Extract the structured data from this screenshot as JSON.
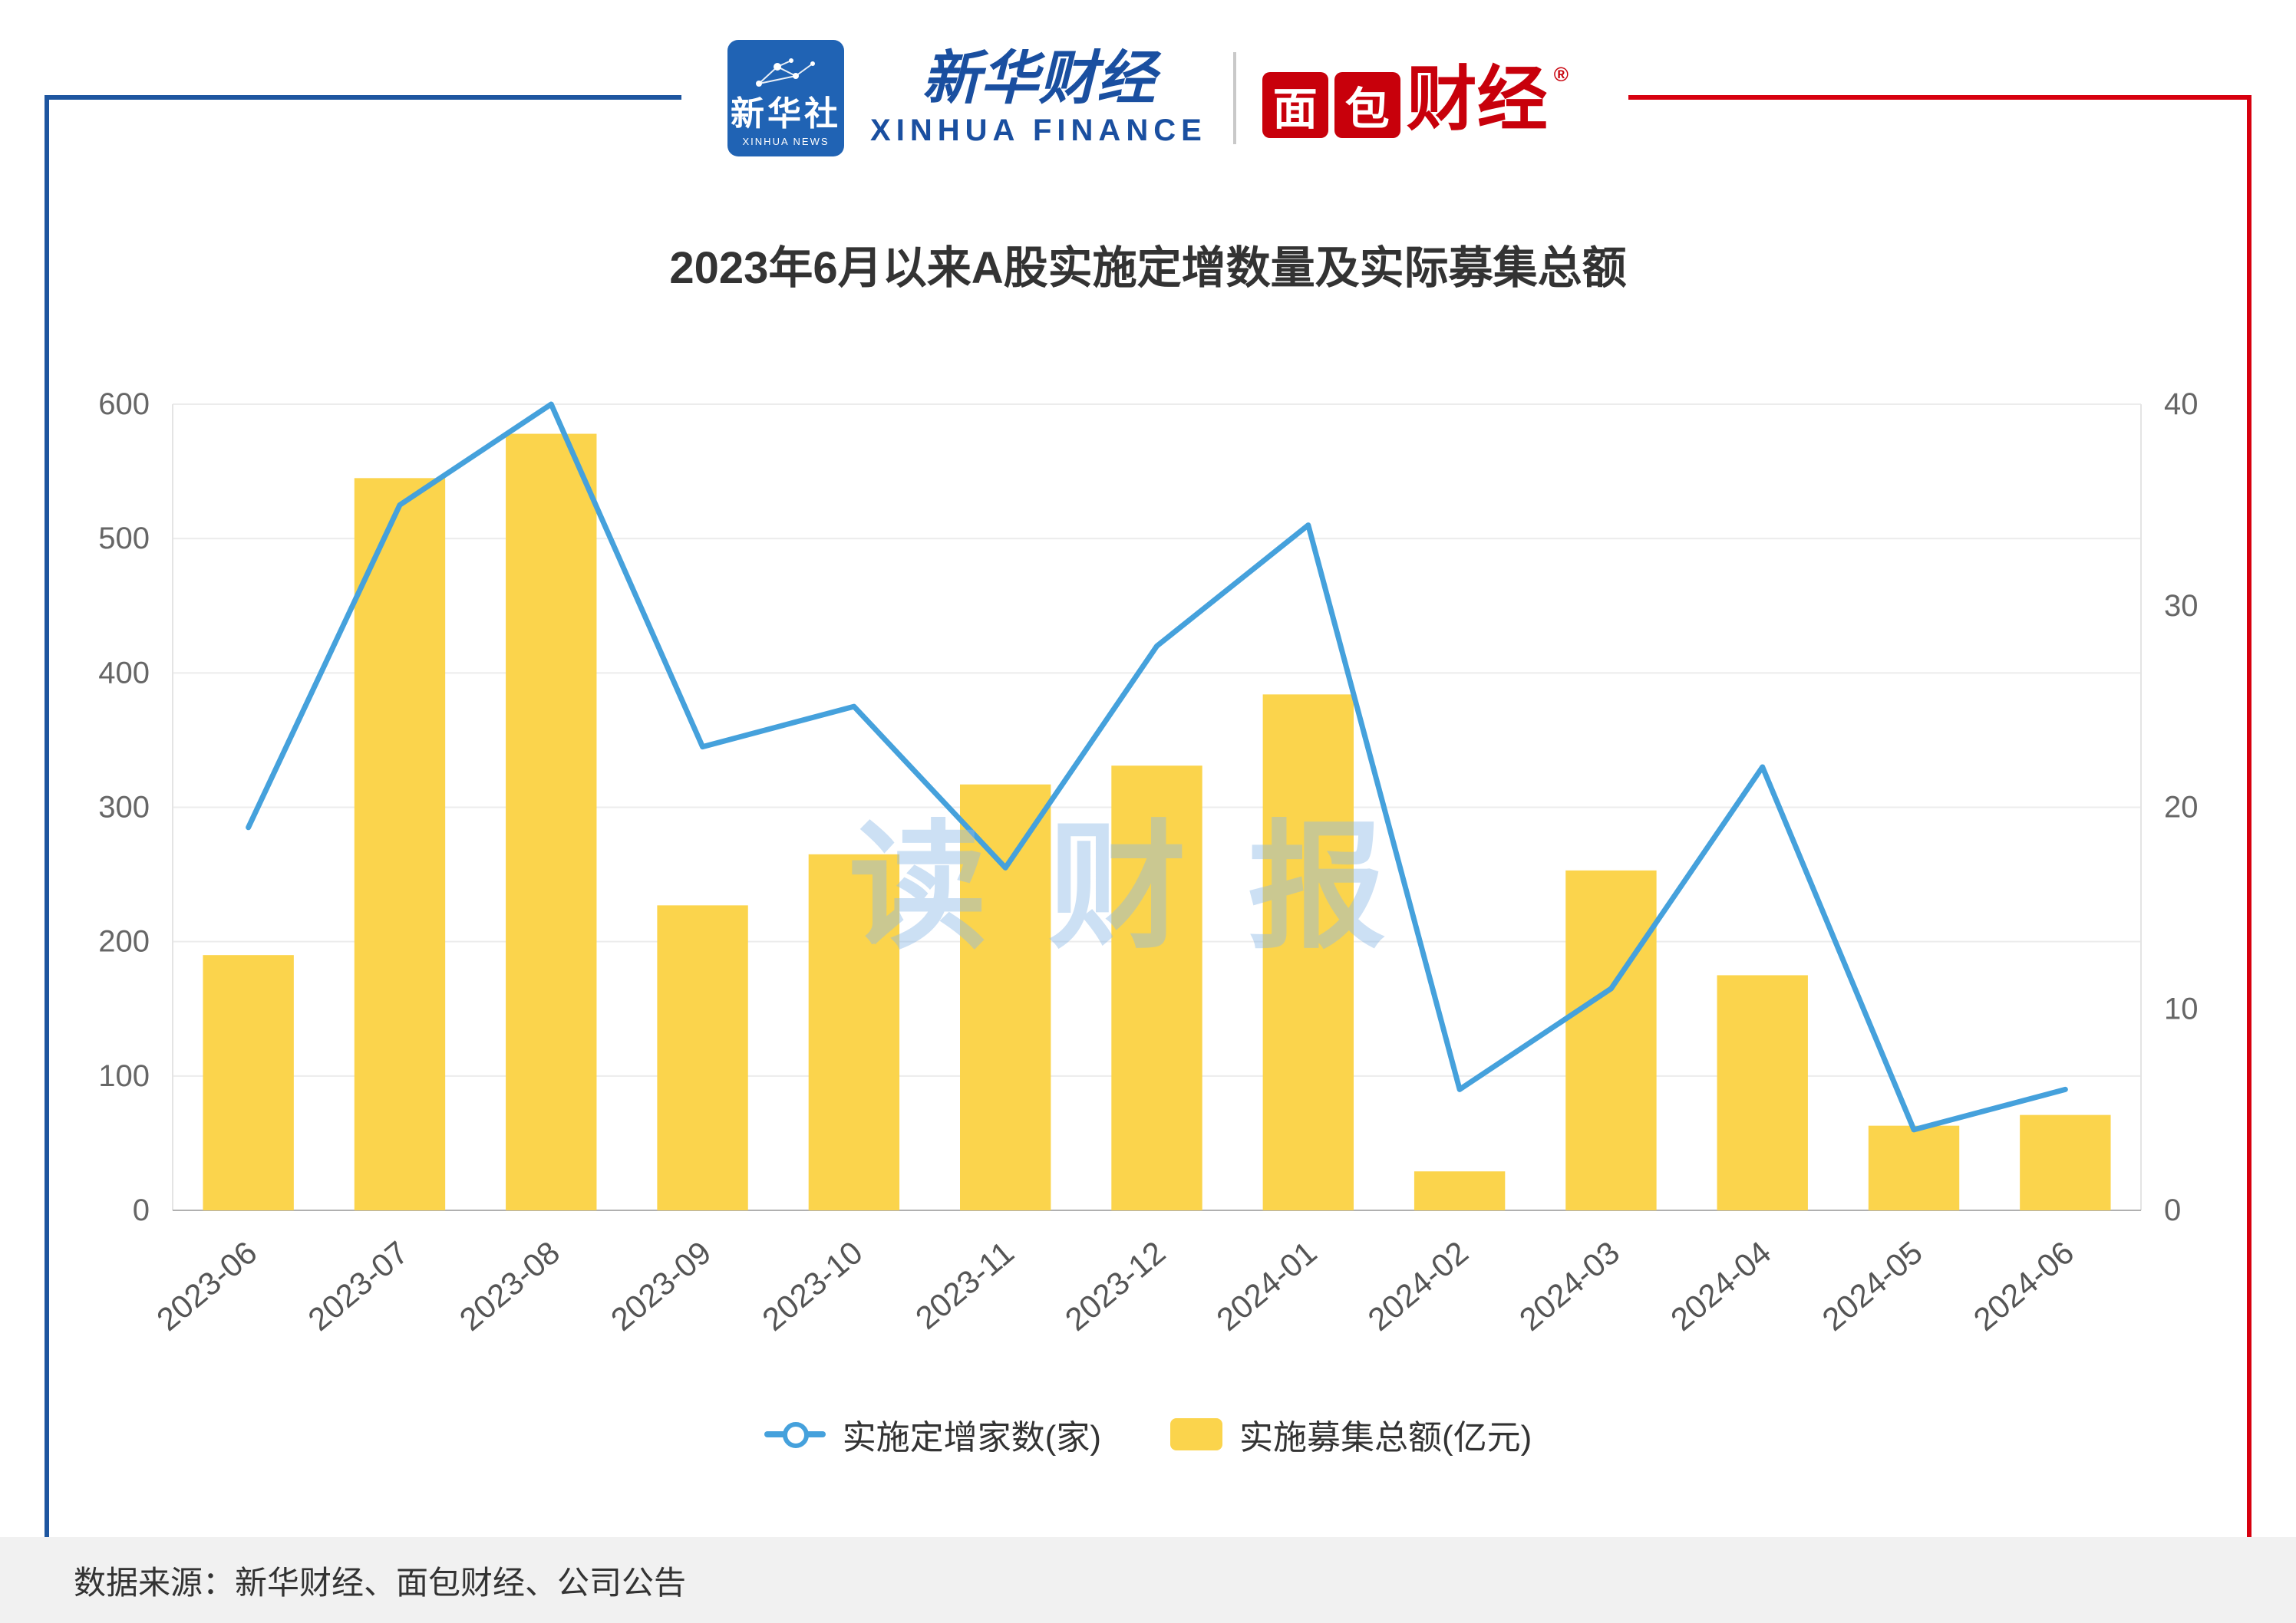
{
  "header": {
    "xinhua_news": {
      "cn": "新华社",
      "en": "XINHUA NEWS"
    },
    "xinhua_finance": {
      "cn": "新华财经",
      "en": "XINHUA FINANCE"
    },
    "mianbao": {
      "char1": "面",
      "char2": "包",
      "char34": "财经",
      "reg": "®"
    }
  },
  "watermark": "读财报",
  "footer": {
    "source": "数据来源：新华财经、面包财经、公司公告"
  },
  "chart_data": {
    "type": "bar+line",
    "title": "2023年6月以来A股实施定增数量及实际募集总额",
    "categories": [
      "2023-06",
      "2023-07",
      "2023-08",
      "2023-09",
      "2023-10",
      "2023-11",
      "2023-12",
      "2024-01",
      "2024-02",
      "2024-03",
      "2024-04",
      "2024-05",
      "2024-06"
    ],
    "series": [
      {
        "name": "实施定增家数(家)",
        "type": "line",
        "axis": "right",
        "color": "#45a1dc",
        "values": [
          19,
          35,
          40,
          23,
          25,
          17,
          28,
          34,
          6,
          11,
          22,
          4,
          6
        ]
      },
      {
        "name": "实施募集总额(亿元)",
        "type": "bar",
        "axis": "left",
        "color": "#fbd44c",
        "values": [
          190,
          545,
          578,
          227,
          265,
          317,
          331,
          384,
          29,
          253,
          175,
          63,
          71
        ]
      }
    ],
    "left_axis": {
      "min": 0,
      "max": 600,
      "ticks": [
        0,
        100,
        200,
        300,
        400,
        500,
        600
      ]
    },
    "right_axis": {
      "min": 0,
      "max": 40,
      "ticks": [
        0,
        10,
        20,
        30,
        40
      ]
    },
    "grid": true,
    "legend_position": "bottom"
  }
}
